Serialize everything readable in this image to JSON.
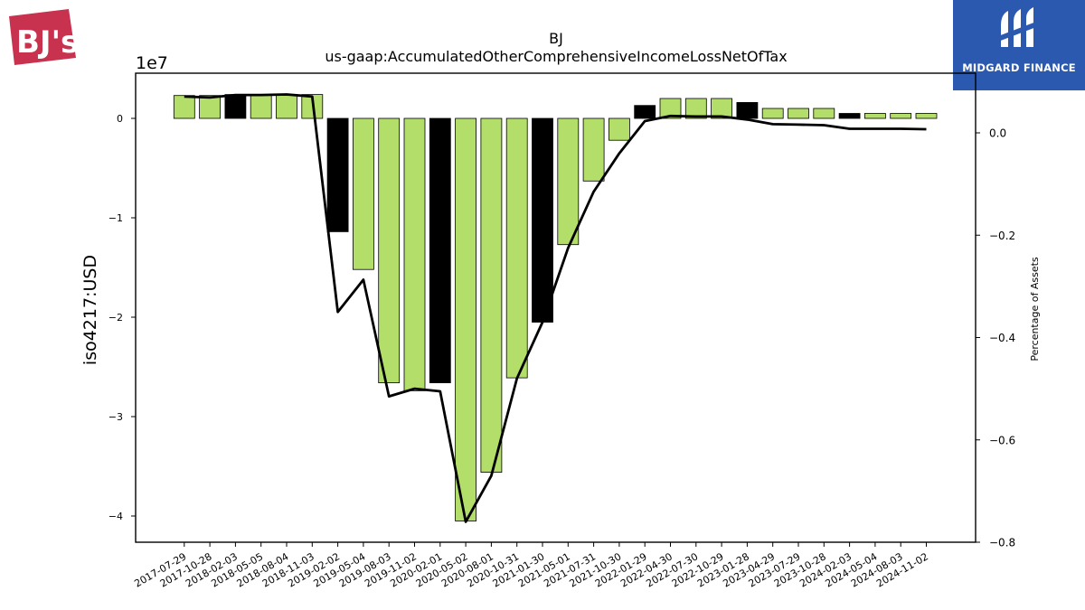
{
  "ticker": "BJ",
  "concept": "us-gaap:AccumulatedOtherComprehensiveIncomeLossNetOfTax",
  "y_left_label": "iso4217:USD",
  "y_left_exponent": "1e7",
  "y_right_label": "Percentage of Assets",
  "logo_left_text": "BJ's",
  "brand_right": "MIDGARD FINANCE",
  "colors": {
    "bar_green": "#b3de69",
    "bar_black": "#000000",
    "line": "#000000",
    "brand_blue": "#2b59b0",
    "bj_red": "#c8324f"
  },
  "chart_data": {
    "type": "bar",
    "title": "BJ",
    "subtitle": "us-gaap:AccumulatedOtherComprehensiveIncomeLossNetOfTax",
    "categories": [
      "2017-07-29",
      "2017-10-28",
      "2018-02-03",
      "2018-05-05",
      "2018-08-04",
      "2018-11-03",
      "2019-02-02",
      "2019-05-04",
      "2019-08-03",
      "2019-11-02",
      "2020-02-01",
      "2020-05-02",
      "2020-08-01",
      "2020-10-31",
      "2021-01-30",
      "2021-05-01",
      "2021-07-31",
      "2021-10-30",
      "2022-01-29",
      "2022-04-30",
      "2022-07-30",
      "2022-10-29",
      "2023-01-28",
      "2023-04-29",
      "2023-07-29",
      "2023-10-28",
      "2024-02-03",
      "2024-05-04",
      "2024-08-03",
      "2024-11-02"
    ],
    "series": [
      {
        "axis": "left",
        "values": [
          2300000,
          2300000,
          2400000,
          2400000,
          2400000,
          2400000,
          -11400000,
          -15200000,
          -26600000,
          -27400000,
          -26600000,
          -40500000,
          -35600000,
          -26100000,
          -20500000,
          -12700000,
          -6300000,
          -2200000,
          1300000,
          2000000,
          2000000,
          2000000,
          1600000,
          1000000,
          1000000,
          1000000,
          500000,
          500000,
          500000,
          500000
        ],
        "highlight_black": [
          2,
          6,
          10,
          14,
          18,
          22,
          26
        ]
      },
      {
        "axis": "right",
        "values": [
          0.071,
          0.069,
          0.074,
          0.074,
          0.075,
          0.071,
          -0.35,
          -0.287,
          -0.515,
          -0.5,
          -0.505,
          -0.76,
          -0.67,
          -0.48,
          -0.37,
          -0.225,
          -0.115,
          -0.04,
          0.023,
          0.033,
          0.032,
          0.032,
          0.026,
          0.017,
          0.016,
          0.015,
          0.008,
          0.008,
          0.008,
          0.007
        ]
      }
    ],
    "ylim_left": [
      -42500000.0,
      4500000.0
    ],
    "ylim_right": [
      -0.8,
      0.08
    ],
    "yticks_left": [
      0,
      -1,
      -2,
      -3,
      -4
    ],
    "yticks_right": [
      0.0,
      -0.2,
      -0.4,
      -0.6,
      -0.8
    ],
    "ylabel_left": "iso4217:USD",
    "ylabel_right": "Percentage of Assets",
    "grid": false
  }
}
